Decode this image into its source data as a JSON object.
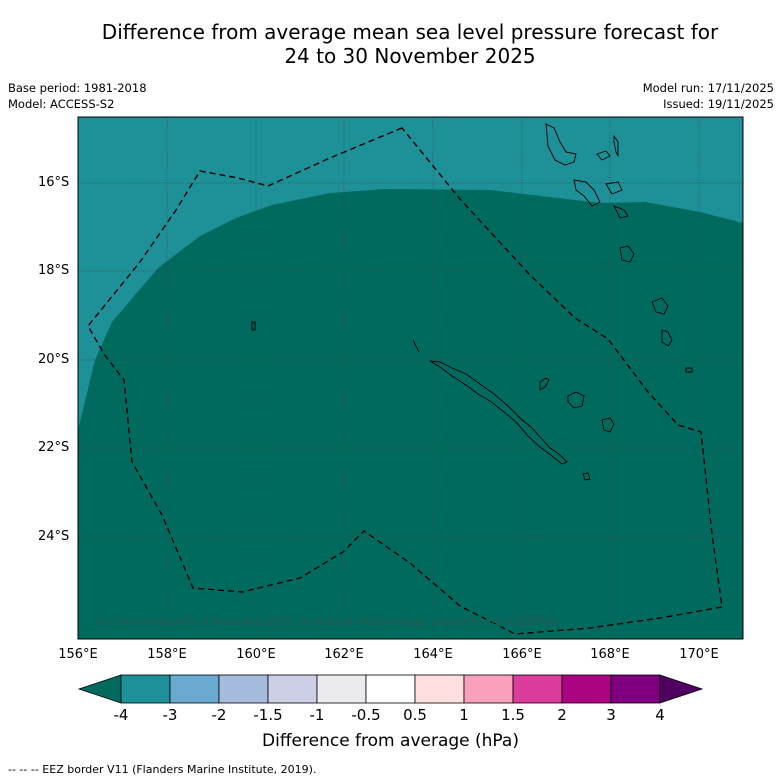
{
  "title": {
    "line1": "Difference from average mean sea level pressure forecast for",
    "line2": "24 to 30 November 2025"
  },
  "meta": {
    "base_period": "Base period: 1981-2018",
    "model": "Model: ACCESS-S2",
    "model_run": "Model run: 17/11/2025",
    "issued": "Issued: 19/11/2025"
  },
  "map": {
    "latitude_labels": [
      "16°S",
      "18°S",
      "20°S",
      "22°S",
      "24°S"
    ],
    "longitude_labels": [
      "156°E",
      "158°E",
      "160°E",
      "162°E",
      "164°E",
      "166°E",
      "168°E",
      "170°E"
    ],
    "copyright": "© Commonwealth of Australia 2025, Bureau of Meteorology, supported by COSPPac",
    "colors": {
      "anomaly_-3_to_-4": "#1e9098",
      "anomaly_below_-4": "#006a5e",
      "grid": "#3a4a44",
      "coast": "#000000"
    }
  },
  "colorbar": {
    "title": "Difference from average (hPa)",
    "ticks": [
      "-4",
      "-3",
      "-2",
      "-1.5",
      "-1",
      "-0.5",
      "0.5",
      "1",
      "1.5",
      "2",
      "3",
      "4"
    ],
    "colors": [
      "#006a5e",
      "#1e9098",
      "#6aaad0",
      "#a6bcdc",
      "#cdcfe6",
      "#ecebee",
      "#ffffff",
      "#ffdede",
      "#f8a0bc",
      "#dc3c9c",
      "#aa0482",
      "#7e0080",
      "#500060"
    ]
  },
  "footer": {
    "legend": "--  --  -- EEZ border V11 (Flanders Marine Institute, 2019)."
  }
}
